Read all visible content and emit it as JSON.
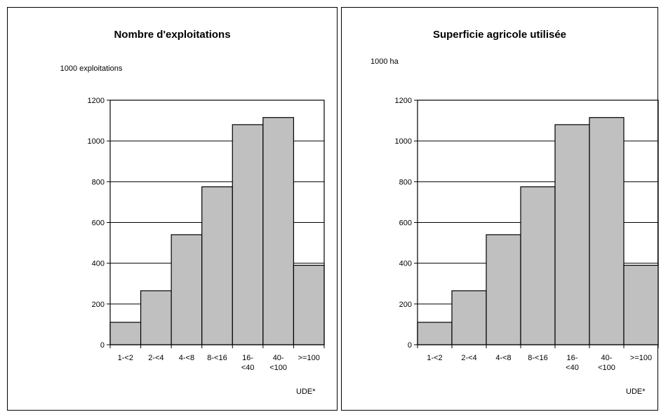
{
  "colors": {
    "bar_fill": "#c0c0c0",
    "bar_stroke": "#000000",
    "grid": "#000000",
    "frame": "#000000"
  },
  "chart_data": [
    {
      "type": "bar",
      "title": "Nombre d'exploitations",
      "ylabel": "1000 exploitations",
      "xlabel": "UDE*",
      "categories": [
        "1-<2",
        "2-<4",
        "4-<8",
        "8-<16",
        "16-<40",
        "40-<100",
        ">=100"
      ],
      "category_lines": [
        [
          "1-<2"
        ],
        [
          "2-<4"
        ],
        [
          "4-<8"
        ],
        [
          "8-<16"
        ],
        [
          "16-",
          "<40"
        ],
        [
          "40-",
          "<100"
        ],
        [
          ">=100"
        ]
      ],
      "values": [
        110,
        265,
        540,
        775,
        1080,
        1115,
        390
      ],
      "ylim": [
        0,
        1200
      ],
      "yticks": [
        0,
        200,
        400,
        600,
        800,
        1000,
        1200
      ],
      "grid": true
    },
    {
      "type": "bar",
      "title": "Superficie agricole utilisée",
      "ylabel": "1000 ha",
      "xlabel": "UDE*",
      "categories": [
        "1-<2",
        "2-<4",
        "4-<8",
        "8-<16",
        "16-<40",
        "40-<100",
        ">=100"
      ],
      "category_lines": [
        [
          "1-<2"
        ],
        [
          "2-<4"
        ],
        [
          "4-<8"
        ],
        [
          "8-<16"
        ],
        [
          "16-",
          "<40"
        ],
        [
          "40-",
          "<100"
        ],
        [
          ">=100"
        ]
      ],
      "values": [
        110,
        265,
        540,
        775,
        1080,
        1115,
        390
      ],
      "ylim": [
        0,
        1200
      ],
      "yticks": [
        0,
        200,
        400,
        600,
        800,
        1000,
        1200
      ],
      "grid": true
    }
  ]
}
